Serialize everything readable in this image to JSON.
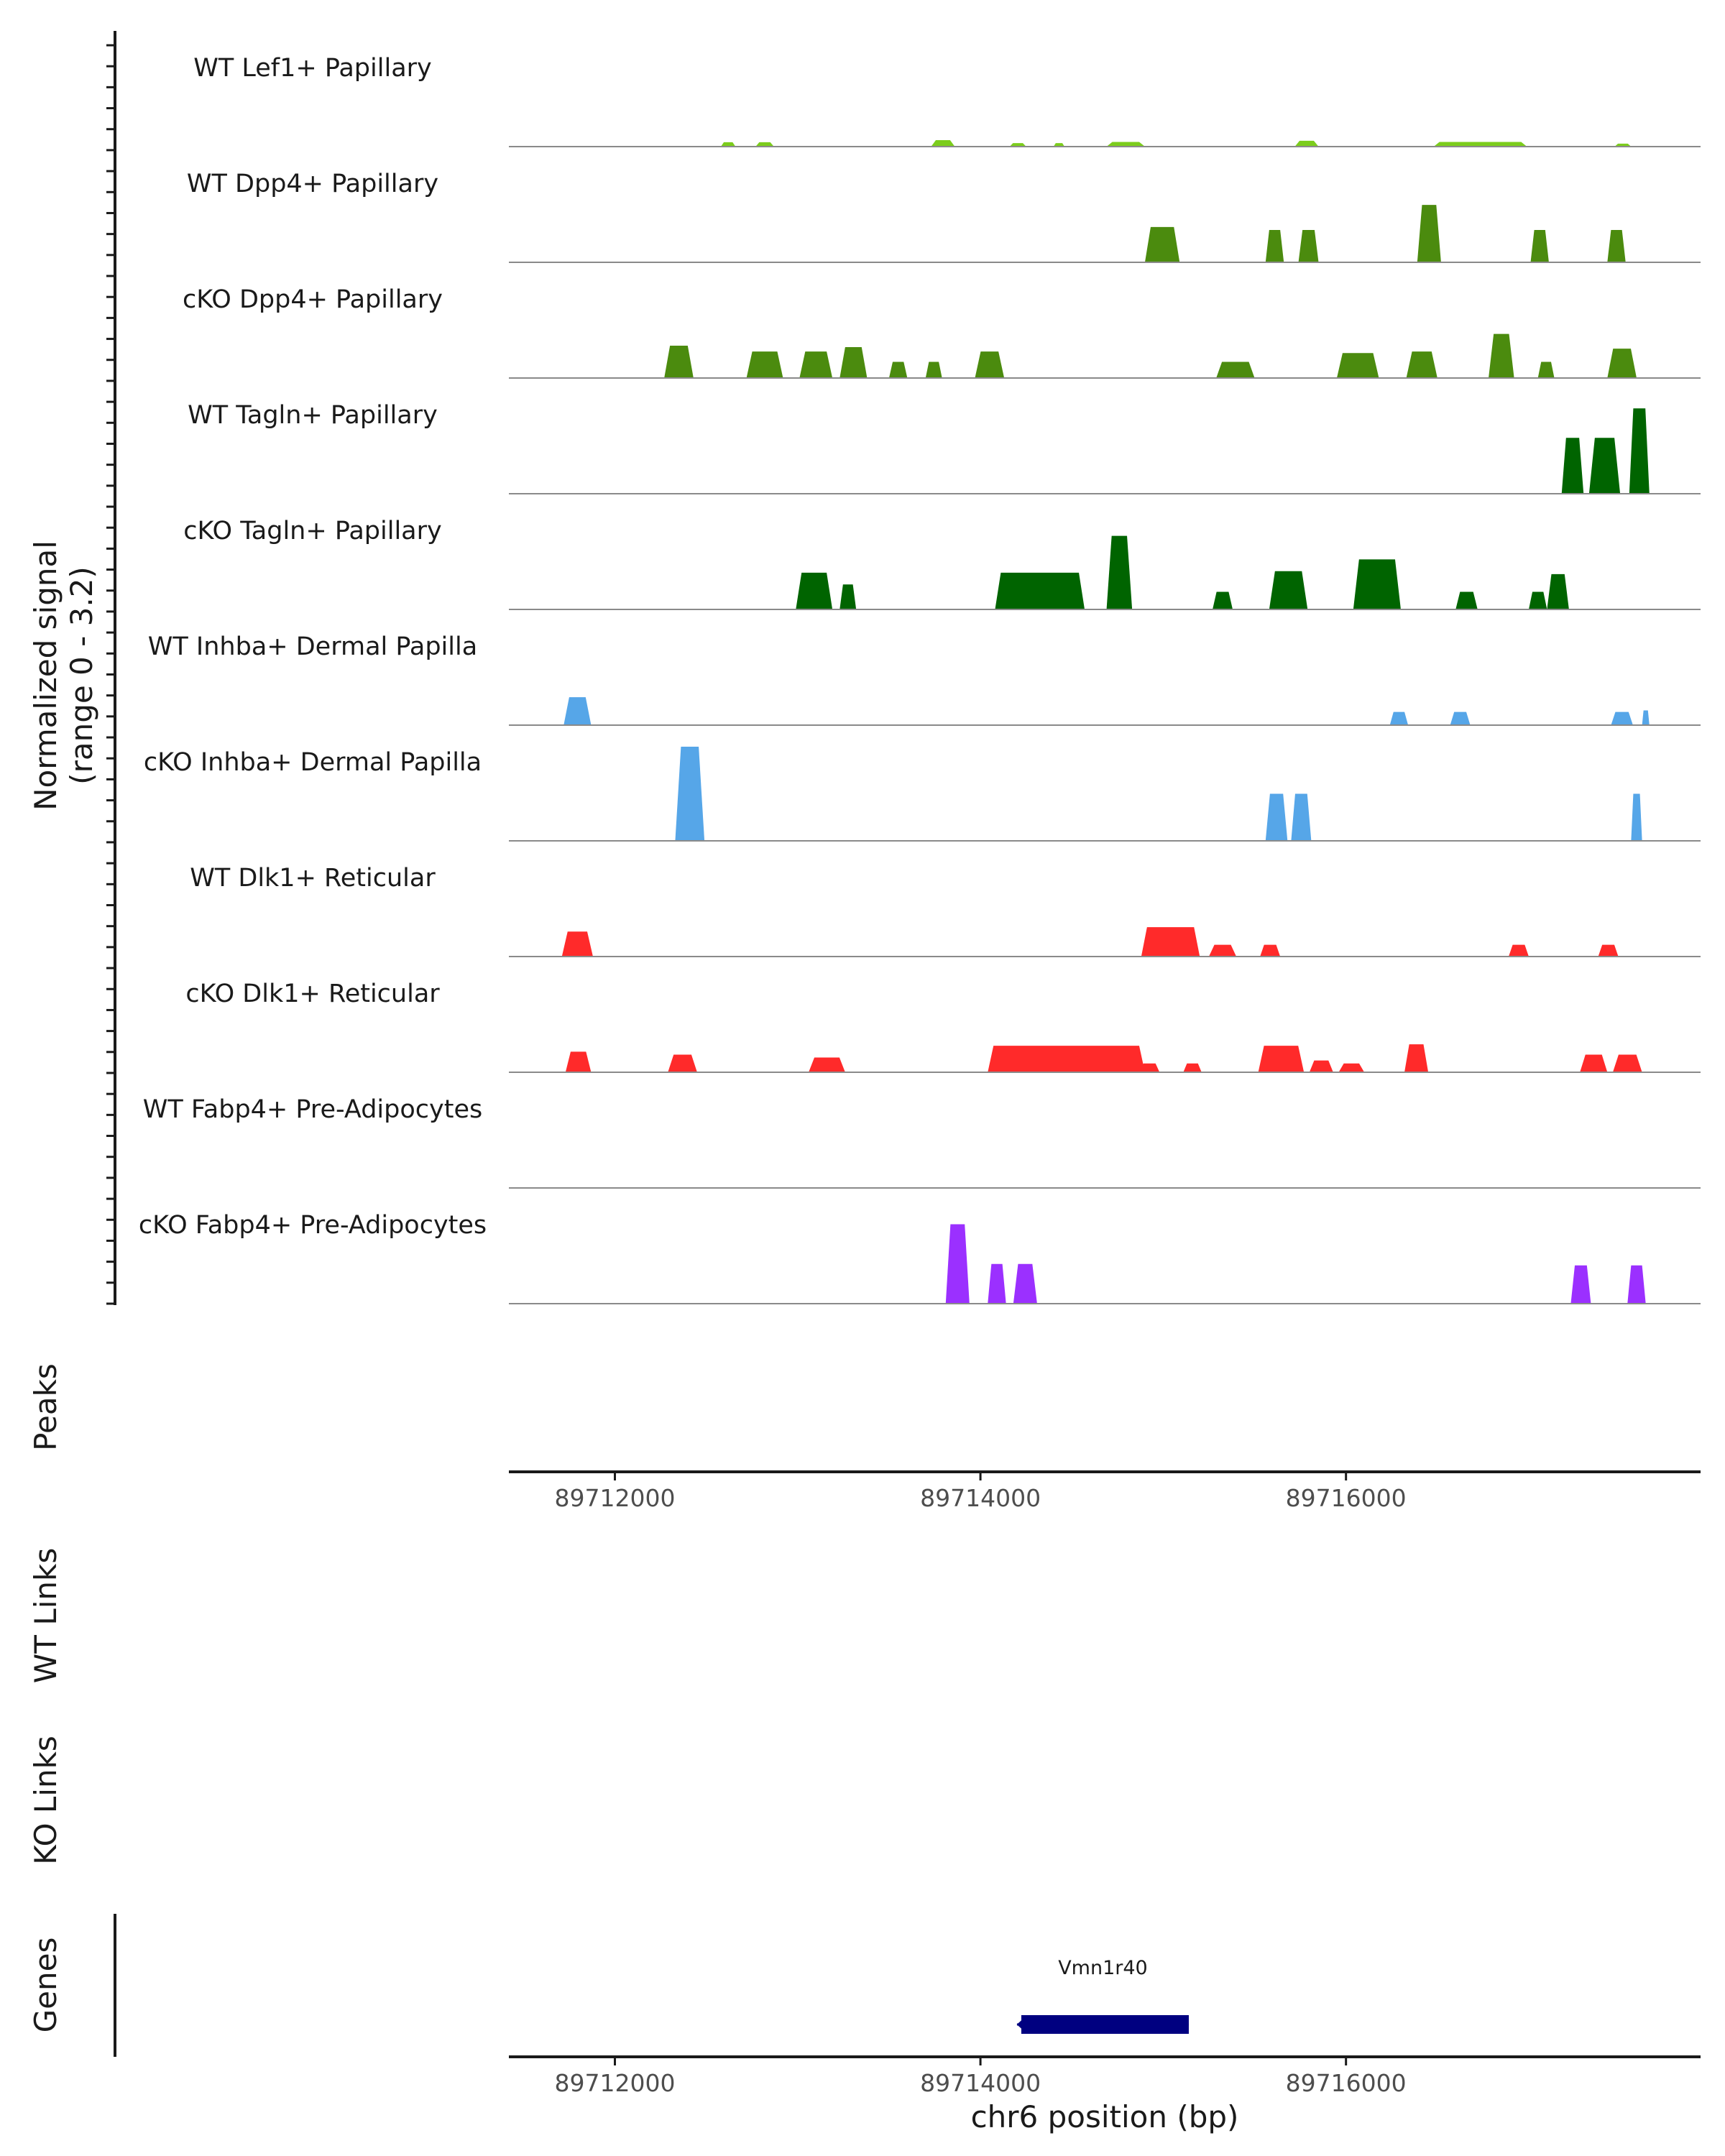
{
  "chart_data": {
    "type": "area",
    "title": "",
    "chromosome": "chr6",
    "xlabel": "chr6 position (bp)",
    "ylabel": "Normalized signal",
    "ylabel_range": "(range 0 - 3.2)",
    "xlim": [
      89711420,
      89717940
    ],
    "ylim": [
      0,
      3.2
    ],
    "x_ticks": [
      89712000,
      89714000,
      89716000
    ],
    "x_tick_labels": [
      "89712000",
      "89714000",
      "89716000"
    ],
    "side_panels": {
      "peaks": "Peaks",
      "wt_links": "WT Links",
      "ko_links": "KO Links",
      "genes": "Genes"
    },
    "genes": [
      {
        "name": "Vmn1r40",
        "start": 89714200,
        "end": 89715140,
        "strand": "-",
        "color": "#000080"
      }
    ],
    "tracks": [
      {
        "name": "WT Lef1+ Papillary",
        "color": "#7CCD1C",
        "segments": [
          [
            89712580,
            89712660,
            0.15
          ],
          [
            89712770,
            89712870,
            0.15
          ],
          [
            89713730,
            89713860,
            0.22
          ],
          [
            89714160,
            89714250,
            0.12
          ],
          [
            89714400,
            89714460,
            0.12
          ],
          [
            89714690,
            89714900,
            0.16
          ],
          [
            89715720,
            89715850,
            0.2
          ],
          [
            89716480,
            89716990,
            0.16
          ],
          [
            89717470,
            89717560,
            0.1
          ]
        ]
      },
      {
        "name": "WT Dpp4+ Papillary",
        "color": "#4B8B0E",
        "segments": [
          [
            89714900,
            89715090,
            1.2
          ],
          [
            89715560,
            89715660,
            1.1
          ],
          [
            89715740,
            89715850,
            1.1
          ],
          [
            89716390,
            89716520,
            1.95
          ],
          [
            89717010,
            89717110,
            1.1
          ],
          [
            89717430,
            89717530,
            1.1
          ]
        ]
      },
      {
        "name": "cKO Dpp4+ Papillary",
        "color": "#4B8B0E",
        "segments": [
          [
            89712270,
            89712430,
            1.1
          ],
          [
            89712720,
            89712920,
            0.9
          ],
          [
            89713010,
            89713190,
            0.9
          ],
          [
            89713230,
            89713380,
            1.05
          ],
          [
            89713500,
            89713600,
            0.55
          ],
          [
            89713700,
            89713790,
            0.55
          ],
          [
            89713970,
            89714130,
            0.9
          ],
          [
            89715290,
            89715500,
            0.55
          ],
          [
            89715950,
            89716180,
            0.85
          ],
          [
            89716330,
            89716500,
            0.9
          ],
          [
            89716780,
            89716920,
            1.5
          ],
          [
            89717050,
            89717140,
            0.55
          ],
          [
            89717430,
            89717590,
            1.0
          ]
        ]
      },
      {
        "name": "WT Tagln+ Papillary",
        "color": "#006400",
        "segments": [
          [
            89717180,
            89717300,
            1.9
          ],
          [
            89717330,
            89717500,
            1.9
          ],
          [
            89717550,
            89717660,
            2.9
          ]
        ]
      },
      {
        "name": "cKO Tagln+ Papillary",
        "color": "#006400",
        "segments": [
          [
            89712990,
            89713190,
            1.25
          ],
          [
            89713230,
            89713320,
            0.85
          ],
          [
            89714080,
            89714570,
            1.25
          ],
          [
            89714690,
            89714830,
            2.5
          ],
          [
            89715270,
            89715380,
            0.6
          ],
          [
            89715580,
            89715790,
            1.3
          ],
          [
            89716040,
            89716300,
            1.7
          ],
          [
            89716600,
            89716720,
            0.6
          ],
          [
            89717000,
            89717100,
            0.6
          ],
          [
            89717100,
            89717220,
            1.2
          ]
        ]
      },
      {
        "name": "WT Inhba+ Dermal Papilla",
        "color": "#56A6E8",
        "segments": [
          [
            89711720,
            89711870,
            0.95
          ],
          [
            89716240,
            89716340,
            0.45
          ],
          [
            89716570,
            89716680,
            0.45
          ],
          [
            89717450,
            89717570,
            0.45
          ],
          [
            89717620,
            89717660,
            0.5
          ]
        ]
      },
      {
        "name": "cKO Inhba+ Dermal Papilla",
        "color": "#56A6E8",
        "segments": [
          [
            89712330,
            89712490,
            3.2
          ],
          [
            89715560,
            89715680,
            1.6
          ],
          [
            89715700,
            89715810,
            1.6
          ],
          [
            89717560,
            89717620,
            1.6
          ]
        ]
      },
      {
        "name": "WT Dlk1+ Reticular",
        "color": "#FF2A2A",
        "segments": [
          [
            89711710,
            89711880,
            0.85
          ],
          [
            89714880,
            89715200,
            1.0
          ],
          [
            89715250,
            89715400,
            0.4
          ],
          [
            89715530,
            89715640,
            0.4
          ],
          [
            89716890,
            89717000,
            0.4
          ],
          [
            89717380,
            89717490,
            0.4
          ]
        ]
      },
      {
        "name": "cKO Dlk1+ Reticular",
        "color": "#FF2A2A",
        "segments": [
          [
            89711730,
            89711870,
            0.7
          ],
          [
            89712290,
            89712450,
            0.6
          ],
          [
            89713060,
            89713260,
            0.5
          ],
          [
            89714040,
            89714900,
            0.9
          ],
          [
            89714870,
            89714980,
            0.3
          ],
          [
            89715110,
            89715210,
            0.3
          ],
          [
            89715520,
            89715770,
            0.9
          ],
          [
            89715800,
            89715930,
            0.4
          ],
          [
            89715960,
            89716100,
            0.3
          ],
          [
            89716320,
            89716450,
            0.95
          ],
          [
            89717280,
            89717430,
            0.6
          ],
          [
            89717460,
            89717620,
            0.6
          ]
        ]
      },
      {
        "name": "WT Fabp4+ Pre-Adipocytes",
        "color": "#9B30FF",
        "segments": []
      },
      {
        "name": "cKO Fabp4+ Pre-Adipocytes",
        "color": "#9B30FF",
        "segments": [
          [
            89713810,
            89713940,
            2.7
          ],
          [
            89714040,
            89714140,
            1.35
          ],
          [
            89714180,
            89714310,
            1.35
          ],
          [
            89717230,
            89717340,
            1.3
          ],
          [
            89717540,
            89717640,
            1.3
          ]
        ]
      }
    ]
  }
}
